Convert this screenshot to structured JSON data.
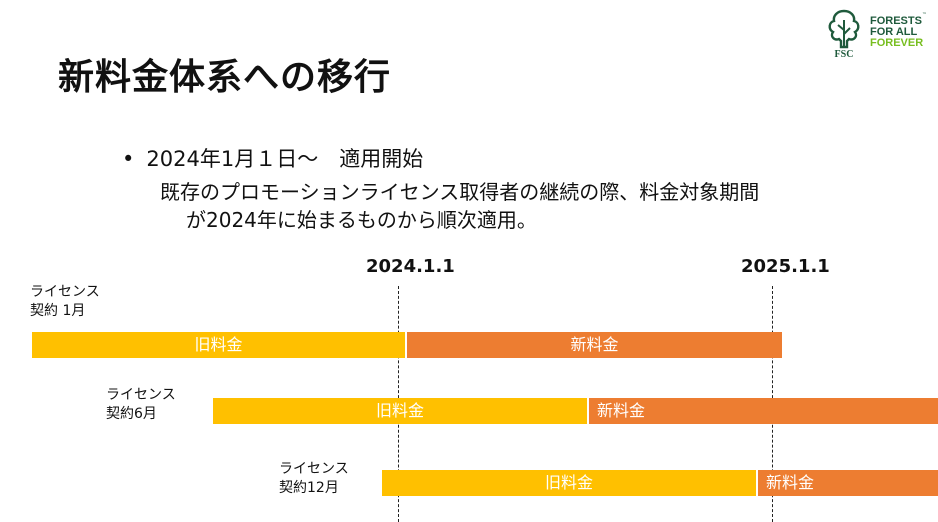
{
  "logo": {
    "line1": "FORESTS",
    "line2": "FOR ALL",
    "line3": "FOREVER",
    "tm": "™",
    "fsc": "FSC"
  },
  "title": "新料金体系への移行",
  "bullet": {
    "dot": "•",
    "text": "2024年1月１日～　適用開始"
  },
  "description": {
    "line1": "既存のプロモーションライセンス取得者の継続の際、料金対象期間",
    "line2": "が2024年に始まるものから順次適用。"
  },
  "timeline": {
    "date1": "2024.1.1",
    "date2": "2025.1.1",
    "rows": [
      {
        "label1": "ライセンス",
        "label2": "契約 1月",
        "old": "旧料金",
        "new": "新料金"
      },
      {
        "label1": "ライセンス",
        "label2": "契約6月",
        "old": "旧料金",
        "new": "新料金"
      },
      {
        "label1": "ライセンス",
        "label2": "契約12月",
        "old": "旧料金",
        "new": "新料金"
      }
    ]
  },
  "colors": {
    "old_fee": "#ffc000",
    "new_fee": "#ed7d31",
    "fsc_green": "#1f5a3c",
    "fsc_light_green": "#78be20"
  }
}
